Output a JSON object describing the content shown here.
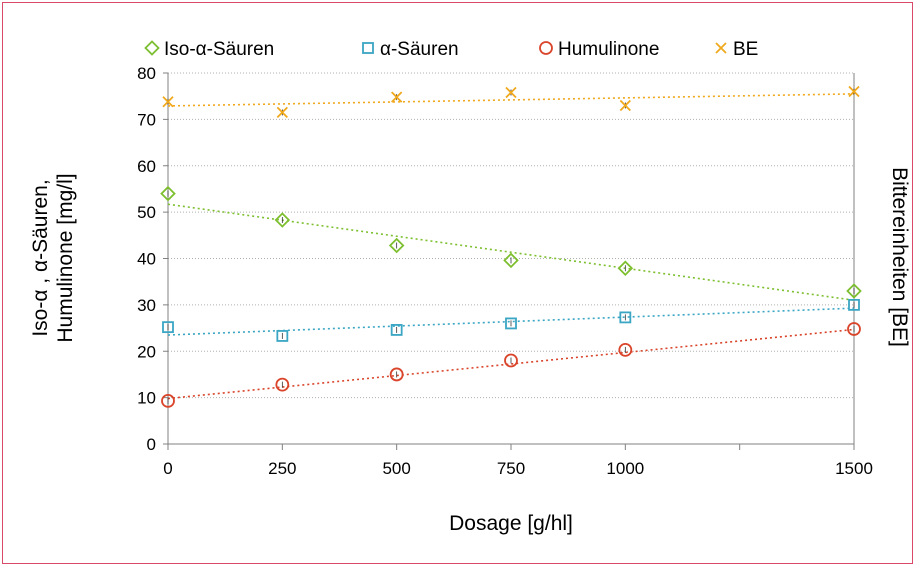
{
  "chart_data": {
    "type": "scatter",
    "title": "",
    "xlabel": "Dosage [g/hl]",
    "ylabel_left_lines": [
      "Iso-α , α-Säuren,",
      "Humulinone [mg/l]"
    ],
    "ylabel_right": "Bittereinheiten [BE]",
    "x_ticks": [
      0,
      250,
      500,
      750,
      1000,
      1500
    ],
    "y_ticks": [
      0,
      10,
      20,
      30,
      40,
      50,
      60,
      70,
      80
    ],
    "xlim": [
      0,
      1500
    ],
    "ylim": [
      0,
      80
    ],
    "grid": "horizontal",
    "legend_position": "top",
    "x_categories_positions": [
      0,
      250,
      500,
      750,
      1000,
      1500
    ],
    "series": [
      {
        "name": "Iso-α-Säuren",
        "marker": "diamond",
        "color": "#7dbf2e",
        "x": [
          0,
          250,
          500,
          750,
          1000,
          1500
        ],
        "y": [
          54,
          48.3,
          42.8,
          39.6,
          37.9,
          33
        ],
        "trend": [
          51.7,
          31.0
        ]
      },
      {
        "name": "α-Säuren",
        "marker": "square",
        "color": "#3aa6c4",
        "x": [
          0,
          250,
          500,
          750,
          1000,
          1500
        ],
        "y": [
          25.2,
          23.3,
          24.6,
          26,
          27.3,
          30
        ],
        "trend": [
          23.5,
          29.3
        ]
      },
      {
        "name": "Humulinone",
        "marker": "circle",
        "color": "#d9442a",
        "x": [
          0,
          250,
          500,
          750,
          1000,
          1500
        ],
        "y": [
          9.3,
          12.8,
          15,
          18,
          20.3,
          24.8
        ],
        "trend": [
          9.8,
          24.7
        ]
      },
      {
        "name": "BE",
        "marker": "x",
        "color": "#f0a81c",
        "x": [
          0,
          250,
          500,
          750,
          1000,
          1500
        ],
        "y": [
          73.8,
          71.5,
          74.8,
          75.8,
          73,
          76
        ],
        "trend": [
          72.9,
          75.5
        ]
      }
    ]
  }
}
